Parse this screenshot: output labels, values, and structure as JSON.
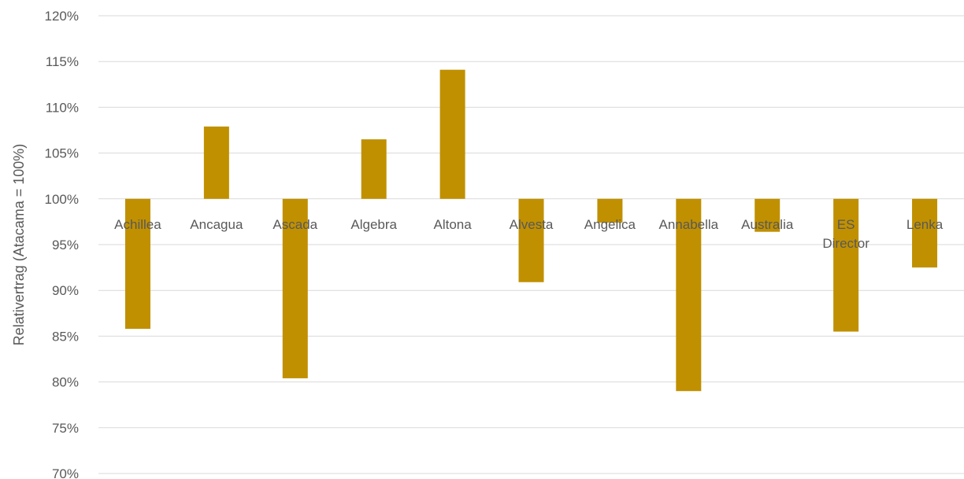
{
  "chart_data": {
    "type": "bar",
    "title": "",
    "xlabel": "",
    "ylabel": "Relativertrag (Atacama = 100%)",
    "baseline": 100,
    "ylim": [
      70,
      120
    ],
    "yticks": [
      70,
      75,
      80,
      85,
      90,
      95,
      100,
      105,
      110,
      115,
      120
    ],
    "ytick_labels": [
      "70%",
      "75%",
      "80%",
      "85%",
      "90%",
      "95%",
      "100%",
      "105%",
      "110%",
      "115%",
      "120%"
    ],
    "categories": [
      "Achillea",
      "Ancagua",
      "Ascada",
      "Algebra",
      "Altona",
      "Alvesta",
      "Angelica",
      "Annabella",
      "Australia",
      "ES Director",
      "Lenka"
    ],
    "values": [
      85.8,
      107.9,
      80.4,
      106.5,
      114.1,
      90.9,
      97.4,
      79.0,
      96.4,
      85.5,
      92.5
    ],
    "bar_color": "#c09000",
    "grid": true,
    "legend": "none"
  }
}
